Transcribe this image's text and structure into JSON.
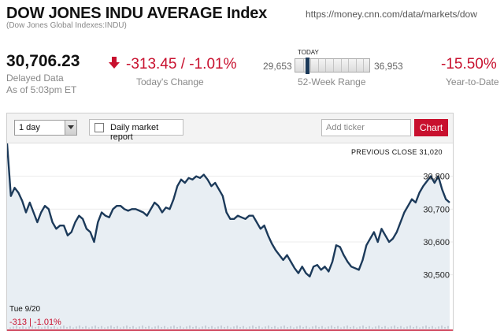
{
  "header": {
    "title": "DOW JONES INDU AVERAGE Index",
    "subtitle": "(Dow Jones Global Indexes:INDU)",
    "url": "https://money.cnn.com/data/markets/dow"
  },
  "quote": {
    "price": "30,706.23",
    "delayed_line1": "Delayed Data",
    "delayed_line2": "As of 5:03pm ET",
    "change": "-313.45 / -1.01%",
    "change_label": "Today's Change",
    "range_low": "29,653",
    "range_high": "36,953",
    "range_label": "52-Week Range",
    "today_label": "TODAY",
    "range_position": 0.14,
    "ytd": "-15.50%",
    "ytd_label": "Year-to-Date"
  },
  "toolbar": {
    "period_selected": "1 day",
    "report_label": "Daily market report",
    "ticker_placeholder": "Add ticker",
    "chart_button": "Chart"
  },
  "colors": {
    "negative": "#c8102e",
    "line": "#1c3a5a",
    "area": "#e8eef3",
    "prev_close_line": "#c8102e"
  },
  "footer": {
    "date": "Tue 9/20",
    "change": "-313 | -1.01%"
  },
  "chart_data": {
    "type": "area",
    "reference_label": "PREVIOUS CLOSE 31,020",
    "previous_close": 31020,
    "ylim": [
      30420,
      30900
    ],
    "y_ticks": [
      30500,
      30600,
      30700,
      30800
    ],
    "y_tick_labels": [
      "30,500",
      "30,600",
      "30,700",
      "30,800"
    ],
    "grid": true,
    "values": [
      30900,
      30740,
      30765,
      30750,
      30725,
      30690,
      30720,
      30690,
      30660,
      30690,
      30710,
      30700,
      30660,
      30640,
      30650,
      30650,
      30620,
      30630,
      30660,
      30680,
      30670,
      30640,
      30630,
      30600,
      30660,
      30690,
      30680,
      30675,
      30700,
      30710,
      30710,
      30700,
      30695,
      30700,
      30700,
      30695,
      30690,
      30680,
      30700,
      30720,
      30710,
      30690,
      30705,
      30700,
      30730,
      30770,
      30790,
      30780,
      30795,
      30790,
      30800,
      30795,
      30805,
      30790,
      30770,
      30780,
      30760,
      30740,
      30690,
      30670,
      30670,
      30680,
      30675,
      30670,
      30680,
      30680,
      30660,
      30640,
      30650,
      30620,
      30595,
      30575,
      30560,
      30545,
      30560,
      30540,
      30520,
      30505,
      30525,
      30505,
      30495,
      30525,
      30530,
      30515,
      30525,
      30510,
      30540,
      30590,
      30585,
      30560,
      30540,
      30525,
      30520,
      30515,
      30545,
      30590,
      30610,
      30630,
      30600,
      30640,
      30620,
      30600,
      30610,
      30630,
      30660,
      30690,
      30710,
      30730,
      30720,
      30750,
      30770,
      30785,
      30800,
      30780,
      30800,
      30760,
      30730,
      30720
    ]
  }
}
